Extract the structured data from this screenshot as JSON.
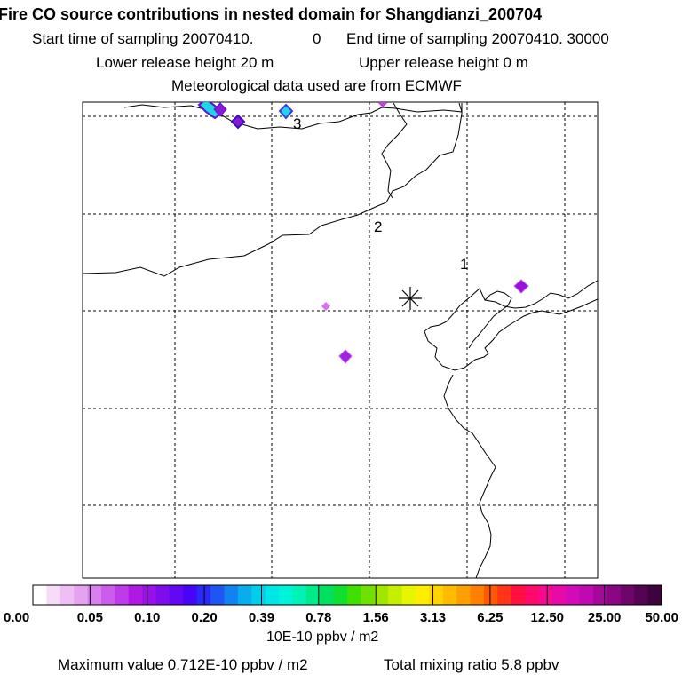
{
  "title": "Fire CO source contributions in nested domain for Shangdianzi_200704",
  "sampling": {
    "start_label": "Start time of sampling 20070410.",
    "start_value": "0",
    "end_label": "End time of sampling 20070410. 30000"
  },
  "release": {
    "lower": "Lower release height   20 m",
    "upper": "Upper release height    0 m"
  },
  "meteo": "Meteorological data used are from ECMWF",
  "colorbar": {
    "unit": "10E-10 ppbv / m2",
    "tick_labels": [
      "0.00",
      "0.05",
      "0.10",
      "0.20",
      "0.39",
      "0.78",
      "1.56",
      "3.13",
      "6.25",
      "12.50",
      "25.00",
      "50.00"
    ],
    "colors": [
      "#ffffff",
      "#f6dcf8",
      "#eebff4",
      "#e5a2f1",
      "#d97fee",
      "#cc5ceb",
      "#bf3ae8",
      "#b018e4",
      "#9a10e8",
      "#7e0ced",
      "#6208f2",
      "#4605f6",
      "#2a2af7",
      "#1f55f4",
      "#1481f0",
      "#09adec",
      "#00cfe9",
      "#00e6e6",
      "#00f2d9",
      "#00f2b4",
      "#00ea8a",
      "#00e060",
      "#0fe030",
      "#3fe000",
      "#70e000",
      "#9fe600",
      "#c6ee00",
      "#e8f500",
      "#ffee00",
      "#ffd400",
      "#ffbb00",
      "#ffa000",
      "#ff7f00",
      "#ff5a00",
      "#ff3418",
      "#ff1040",
      "#ff0a6a",
      "#f70a8f",
      "#e80aa8",
      "#d40ab8",
      "#be0ab0",
      "#a5089a",
      "#8a0682",
      "#6f056a",
      "#540452",
      "#3d033c"
    ]
  },
  "footer": {
    "max_value": "Maximum value  0.712E-10 ppbv / m2",
    "total": "Total mixing ratio        5.8 ppbv"
  },
  "chart_data": {
    "type": "heatmap",
    "title": "Fire CO source contributions in nested domain for Shangdianzi_200704",
    "colorbar_levels": [
      0.0,
      0.05,
      0.1,
      0.2,
      0.39,
      0.78,
      1.56,
      3.13,
      6.25,
      12.5,
      25.0,
      50.0
    ],
    "colorbar_unit": "10E-10 ppbv / m2",
    "gridlines": true,
    "point_labels": [
      "1",
      "2",
      "3"
    ],
    "receptor_marker": "asterisk",
    "max_value": 0.712
  }
}
